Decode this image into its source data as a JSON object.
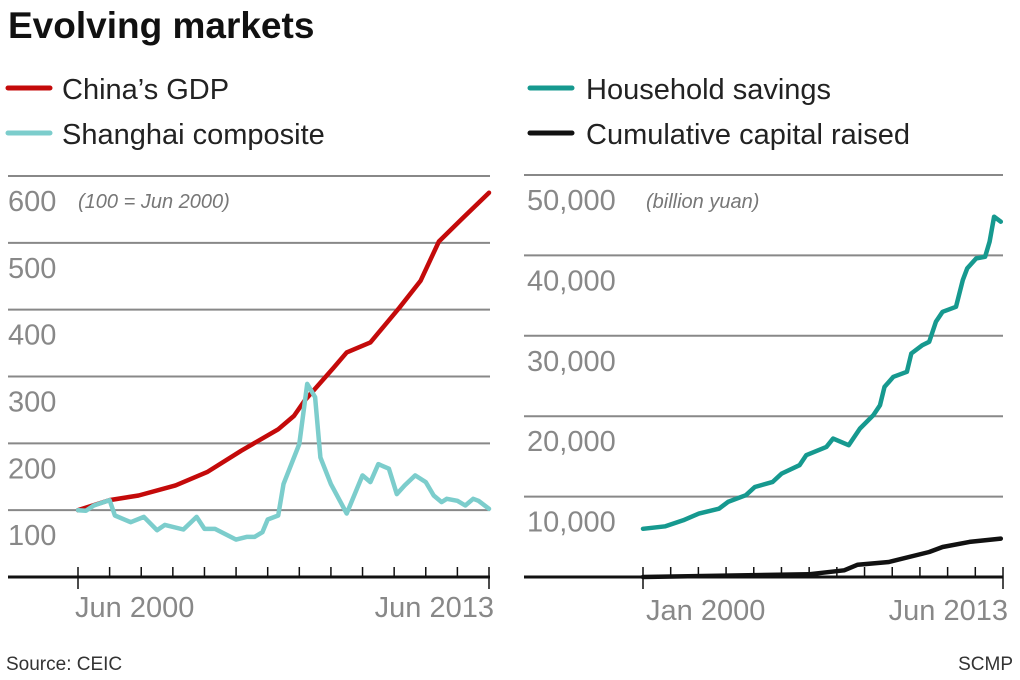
{
  "title": "Evolving markets",
  "source": "Source: CEIC",
  "credit": "SCMP",
  "colors": {
    "gdp": "#c40a0a",
    "shanghai": "#7ccdcc",
    "savings": "#16998f",
    "capital": "#111111"
  },
  "chart_data": [
    {
      "type": "line",
      "unit_note": "(100 = Jun 2000)",
      "ylim": [
        0,
        600
      ],
      "yticks": [
        "100",
        "200",
        "300",
        "400",
        "500",
        "600"
      ],
      "xtick_labels": [
        "Jun 2000",
        "Jun 2013"
      ],
      "xlim": [
        "2000-06",
        "2013-06"
      ],
      "grid": true,
      "legend": "top-left",
      "series": [
        {
          "name": "China’s GDP",
          "color_key": "gdp",
          "points": [
            [
              "2000-06",
              100
            ],
            [
              "2001-06",
              115
            ],
            [
              "2002-05",
              122
            ],
            [
              "2003-07",
              137
            ],
            [
              "2004-07",
              157
            ],
            [
              "2005-08",
              189
            ],
            [
              "2006-10",
              221
            ],
            [
              "2007-04",
              241
            ],
            [
              "2007-08",
              264
            ],
            [
              "2008-07",
              313
            ],
            [
              "2008-12",
              336
            ],
            [
              "2009-09",
              351
            ],
            [
              "2010-08",
              403
            ],
            [
              "2011-04",
              443
            ],
            [
              "2011-11",
              502
            ],
            [
              "2012-08",
              537
            ],
            [
              "2013-06",
              575
            ]
          ]
        },
        {
          "name": "Shanghai composite",
          "color_key": "shanghai",
          "points": [
            [
              "2000-06",
              100
            ],
            [
              "2000-09",
              99
            ],
            [
              "2000-12",
              107
            ],
            [
              "2001-06",
              115
            ],
            [
              "2001-08",
              92
            ],
            [
              "2002-02",
              82
            ],
            [
              "2002-07",
              90
            ],
            [
              "2002-12",
              70
            ],
            [
              "2003-03",
              78
            ],
            [
              "2003-10",
              71
            ],
            [
              "2004-03",
              90
            ],
            [
              "2004-06",
              72
            ],
            [
              "2004-10",
              72
            ],
            [
              "2005-06",
              56
            ],
            [
              "2005-10",
              60
            ],
            [
              "2006-01",
              60
            ],
            [
              "2006-04",
              67
            ],
            [
              "2006-06",
              86
            ],
            [
              "2006-10",
              92
            ],
            [
              "2006-12",
              139
            ],
            [
              "2007-06",
              199
            ],
            [
              "2007-09",
              289
            ],
            [
              "2007-12",
              269
            ],
            [
              "2008-02",
              179
            ],
            [
              "2008-06",
              139
            ],
            [
              "2008-12",
              95
            ],
            [
              "2009-06",
              152
            ],
            [
              "2009-09",
              142
            ],
            [
              "2009-12",
              169
            ],
            [
              "2010-04",
              162
            ],
            [
              "2010-07",
              124
            ],
            [
              "2010-10",
              137
            ],
            [
              "2011-02",
              152
            ],
            [
              "2011-06",
              142
            ],
            [
              "2011-09",
              122
            ],
            [
              "2011-12",
              112
            ],
            [
              "2012-02",
              117
            ],
            [
              "2012-06",
              114
            ],
            [
              "2012-09",
              107
            ],
            [
              "2012-12",
              117
            ],
            [
              "2013-02",
              114
            ],
            [
              "2013-06",
              102
            ]
          ]
        }
      ]
    },
    {
      "type": "line",
      "unit_note": "(billion yuan)",
      "ylim": [
        0,
        50000
      ],
      "yticks": [
        "10,000",
        "20,000",
        "30,000",
        "40,000",
        "50,000"
      ],
      "xtick_labels": [
        "Jan 2000",
        "Jun 2013"
      ],
      "xlim": [
        "2000-01",
        "2013-06"
      ],
      "grid": true,
      "legend": "top-left",
      "series": [
        {
          "name": "Household savings",
          "color_key": "savings",
          "points": [
            [
              "2000-01",
              6000
            ],
            [
              "2000-11",
              6300
            ],
            [
              "2001-07",
              7050
            ],
            [
              "2002-02",
              7880
            ],
            [
              "2002-11",
              8500
            ],
            [
              "2003-03",
              9340
            ],
            [
              "2003-11",
              10170
            ],
            [
              "2004-03",
              11200
            ],
            [
              "2004-11",
              11830
            ],
            [
              "2005-03",
              12860
            ],
            [
              "2005-11",
              13900
            ],
            [
              "2006-02",
              15150
            ],
            [
              "2006-11",
              16180
            ],
            [
              "2007-02",
              17220
            ],
            [
              "2007-09",
              16390
            ],
            [
              "2008-02",
              18460
            ],
            [
              "2008-08",
              20120
            ],
            [
              "2008-11",
              21370
            ],
            [
              "2009-01",
              23650
            ],
            [
              "2009-05",
              24900
            ],
            [
              "2009-11",
              25520
            ],
            [
              "2010-01",
              27800
            ],
            [
              "2010-06",
              28840
            ],
            [
              "2010-09",
              29250
            ],
            [
              "2010-12",
              31740
            ],
            [
              "2011-03",
              32990
            ],
            [
              "2011-09",
              33610
            ],
            [
              "2011-12",
              36930
            ],
            [
              "2012-02",
              38380
            ],
            [
              "2012-06",
              39630
            ],
            [
              "2012-10",
              39830
            ],
            [
              "2012-12",
              41700
            ],
            [
              "2013-02",
              44810
            ],
            [
              "2013-05",
              44190
            ]
          ]
        },
        {
          "name": "Cumulative capital raised",
          "color_key": "capital",
          "points": [
            [
              "2000-01",
              0
            ],
            [
              "2006-03",
              330
            ],
            [
              "2007-07",
              830
            ],
            [
              "2008-01",
              1535
            ],
            [
              "2009-03",
              1870
            ],
            [
              "2010-09",
              3110
            ],
            [
              "2011-03",
              3730
            ],
            [
              "2012-03",
              4360
            ],
            [
              "2013-05",
              4770
            ]
          ]
        }
      ]
    }
  ]
}
